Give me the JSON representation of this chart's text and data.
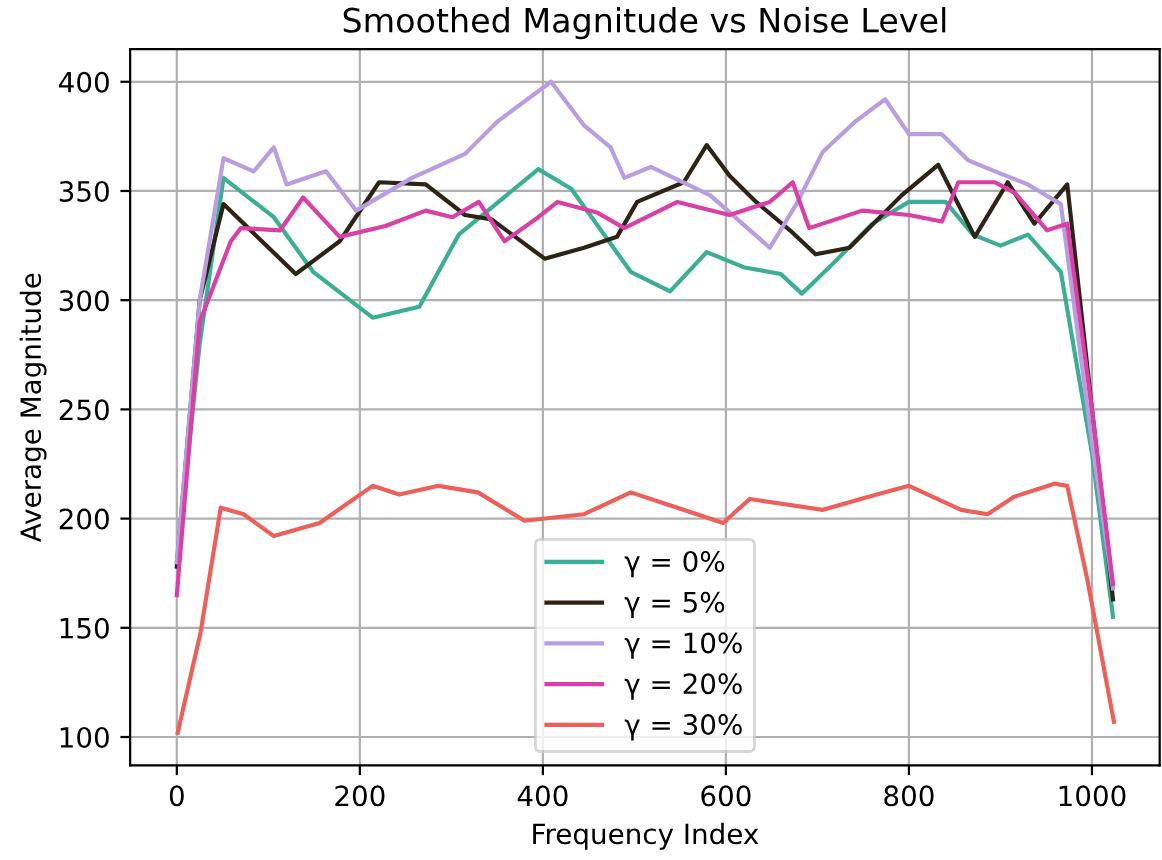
{
  "chart_data": {
    "type": "line",
    "title": "Smoothed Magnitude vs Noise Level",
    "xlabel": "Frequency Index",
    "ylabel": "Average Magnitude",
    "xlim": [
      -51,
      1074
    ],
    "ylim": [
      87,
      415
    ],
    "xticks": [
      0,
      200,
      400,
      600,
      800,
      1000
    ],
    "yticks": [
      100,
      150,
      200,
      250,
      300,
      350,
      400
    ],
    "grid": true,
    "legend": "bottom",
    "legend_title": null,
    "series": [
      {
        "name": "γ = 0%",
        "color": "#3aaf93",
        "x": [
          0,
          25,
          51,
          106,
          149,
          214,
          265,
          308,
          395,
          431,
          496,
          539,
          579,
          620,
          660,
          683,
          720,
          760,
          800,
          840,
          870,
          900,
          930,
          966,
          1000,
          1023
        ],
        "values": [
          180,
          280,
          356,
          338,
          313,
          292,
          297,
          330,
          360,
          351,
          313,
          304,
          322,
          315,
          312,
          303,
          318,
          335,
          345,
          345,
          330,
          325,
          330,
          313,
          230,
          155
        ]
      },
      {
        "name": "γ = 5%",
        "color": "#2d2416",
        "x": [
          0,
          25,
          51,
          130,
          178,
          221,
          272,
          315,
          344,
          402,
          445,
          481,
          503,
          554,
          579,
          604,
          633,
          670,
          698,
          735,
          792,
          832,
          872,
          908,
          937,
          973,
          1023
        ],
        "values": [
          178,
          300,
          344,
          312,
          327,
          354,
          353,
          339,
          337,
          319,
          324,
          329,
          345,
          354,
          371,
          357,
          345,
          332,
          321,
          324,
          348,
          362,
          329,
          354,
          335,
          353,
          163
        ]
      },
      {
        "name": "γ = 10%",
        "color": "#b89ee0",
        "x": [
          0,
          25,
          51,
          84,
          106,
          120,
          163,
          196,
          257,
          315,
          351,
          409,
          445,
          474,
          489,
          518,
          583,
          648,
          677,
          706,
          742,
          774,
          800,
          836,
          865,
          894,
          930,
          966,
          1000,
          1023
        ],
        "values": [
          180,
          300,
          365,
          359,
          370,
          353,
          359,
          341,
          356,
          367,
          382,
          400,
          380,
          370,
          356,
          361,
          348,
          324,
          344,
          368,
          382,
          392,
          376,
          376,
          364,
          359,
          353,
          344,
          235,
          168
        ]
      },
      {
        "name": "γ = 20%",
        "color": "#d93fa5",
        "x": [
          0,
          25,
          59,
          70,
          113,
          138,
          178,
          228,
          272,
          301,
          330,
          358,
          395,
          416,
          460,
          489,
          547,
          604,
          648,
          673,
          691,
          749,
          800,
          836,
          854,
          894,
          916,
          951,
          973,
          1000,
          1023
        ],
        "values": [
          165,
          290,
          327,
          333,
          332,
          347,
          329,
          334,
          341,
          338,
          345,
          327,
          338,
          345,
          340,
          333,
          345,
          339,
          345,
          354,
          333,
          341,
          339,
          336,
          354,
          354,
          349,
          332,
          335,
          250,
          170
        ]
      },
      {
        "name": "γ = 30%",
        "color": "#ee5f5a",
        "x": [
          1,
          26,
          48,
          73,
          106,
          156,
          214,
          243,
          286,
          329,
          380,
          445,
          496,
          547,
          597,
          626,
          706,
          756,
          800,
          857,
          886,
          915,
          959,
          973,
          995,
          1024
        ],
        "values": [
          102,
          148,
          205,
          202,
          192,
          198,
          215,
          211,
          215,
          212,
          199,
          202,
          212,
          205,
          198,
          209,
          204,
          210,
          215,
          204,
          202,
          210,
          216,
          215,
          172,
          107
        ]
      }
    ]
  }
}
